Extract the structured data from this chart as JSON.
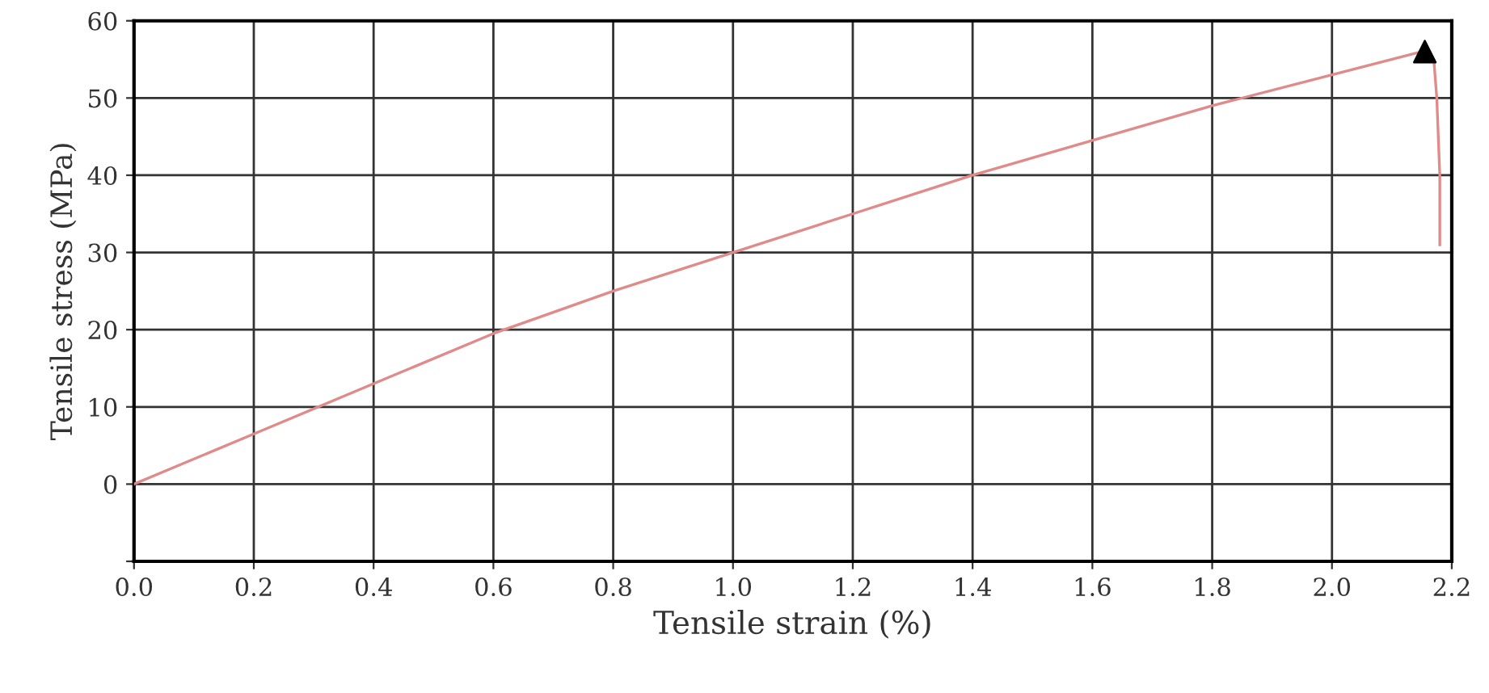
{
  "chart_data": {
    "type": "line",
    "xlabel": "Tensile strain (%)",
    "ylabel": "Tensile stress (MPa)",
    "xlim": [
      0,
      2.2
    ],
    "ylim": [
      -10,
      60
    ],
    "xticks": [
      {
        "value": 0,
        "label": "0.0"
      },
      0.2,
      0.4,
      0.6,
      0.8,
      {
        "value": 1,
        "label": "1.0"
      },
      1.2,
      1.4,
      1.6,
      1.8,
      {
        "value": 2,
        "label": "2.0"
      },
      2.2
    ],
    "yticks": [
      {
        "value": -10,
        "label": null
      },
      0,
      10,
      20,
      30,
      40,
      50,
      60
    ],
    "grid": true,
    "marker": "none",
    "line_style": "solid",
    "series": [
      {
        "color": "#e08a8a",
        "x": [
          0,
          0.2,
          0.4,
          0.6,
          0.8,
          1.0,
          1.2,
          1.4,
          1.6,
          1.8,
          2.0,
          2.15,
          2.17,
          2.175,
          2.18,
          2.18
        ],
        "values": [
          0,
          6.5,
          13,
          19.5,
          25,
          30,
          35,
          40,
          44.5,
          49,
          53,
          56,
          55,
          50,
          40,
          31
        ]
      },
      {
        "type": "scatter",
        "color": "#000000",
        "marker": "triangle",
        "x": [
          2.155
        ],
        "values": [
          56
        ]
      }
    ]
  }
}
